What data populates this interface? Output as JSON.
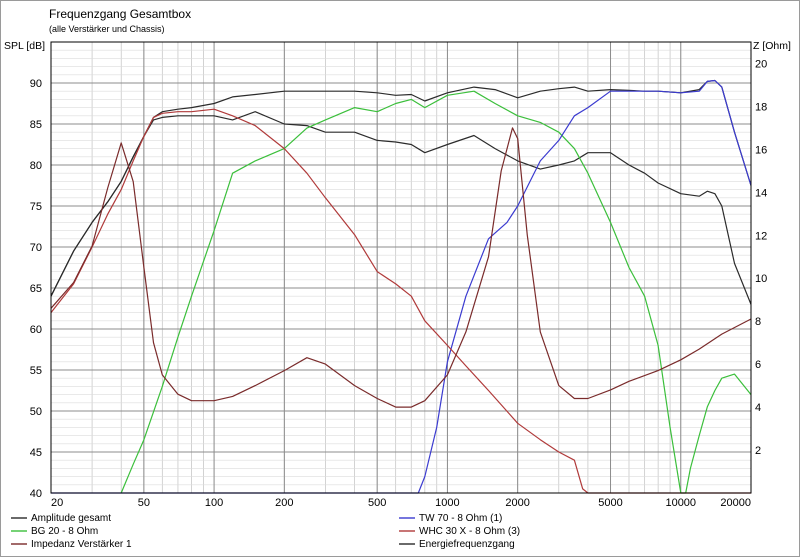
{
  "chart_data": {
    "type": "line",
    "title": "Frequenzgang Gesamtbox",
    "subtitle": "(alle Verstärker und Chassis)",
    "ylabel": "SPL [dB]",
    "y2label": "Z [Ohm]",
    "x_scale": "log",
    "xlim": [
      20,
      20000
    ],
    "ylim": [
      40,
      95
    ],
    "y2lim": [
      0,
      21
    ],
    "grid": true,
    "legend_position": "bottom",
    "x_ticks": [
      20,
      50,
      100,
      200,
      500,
      1000,
      2000,
      5000,
      10000,
      20000
    ],
    "y_ticks": [
      40,
      45,
      50,
      55,
      60,
      65,
      70,
      75,
      80,
      85,
      90
    ],
    "y2_ticks": [
      2,
      4,
      6,
      8,
      10,
      12,
      14,
      16,
      18,
      20
    ],
    "series": [
      {
        "name": "Amplitude gesamt",
        "axis": "left",
        "color": "#2b2b2b",
        "x": [
          20,
          25,
          30,
          35,
          40,
          45,
          50,
          55,
          60,
          70,
          80,
          100,
          120,
          150,
          200,
          250,
          300,
          400,
          500,
          600,
          700,
          800,
          1000,
          1300,
          1600,
          2000,
          2500,
          3000,
          3500,
          4000,
          5000,
          6000,
          7000,
          8000,
          10000,
          12000,
          13000,
          14000,
          15000,
          17000,
          20000
        ],
        "y": [
          64,
          69.5,
          73,
          75.5,
          78,
          81,
          83.5,
          85.5,
          85.8,
          86,
          86,
          86,
          85.5,
          86.5,
          85,
          84.8,
          84,
          84,
          83,
          82.8,
          82.5,
          81.5,
          82.5,
          83.6,
          82,
          80.5,
          79.5,
          80,
          80.5,
          81.5,
          81.5,
          80,
          79,
          77.8,
          76.5,
          76.2,
          76.8,
          76.5,
          75,
          68,
          63
        ]
      },
      {
        "name": "Energiefrequenzgang",
        "axis": "left",
        "color": "#2b2b2b",
        "x": [
          20,
          25,
          30,
          35,
          40,
          45,
          50,
          55,
          60,
          70,
          80,
          100,
          120,
          150,
          200,
          250,
          300,
          400,
          500,
          600,
          700,
          800,
          1000,
          1300,
          1600,
          2000,
          2500,
          3000,
          3500,
          4000,
          5000,
          6000,
          7000,
          8000,
          10000,
          12000,
          13000,
          14000,
          15000,
          17000,
          20000
        ],
        "y": [
          64,
          69.5,
          73,
          75.5,
          78,
          81,
          83.5,
          85.8,
          86.5,
          86.8,
          87,
          87.5,
          88.3,
          88.6,
          89,
          89,
          89,
          89,
          88.8,
          88.5,
          88.6,
          87.8,
          88.8,
          89.5,
          89.2,
          88.2,
          89,
          89.3,
          89.5,
          89,
          89.2,
          89.1,
          89,
          89,
          88.8,
          89.2,
          90.2,
          90.3,
          89.5,
          84,
          77.5
        ]
      },
      {
        "name": "BG 20 - 8 Ohm",
        "axis": "left",
        "color": "#3bbf3b",
        "x": [
          40,
          45,
          50,
          60,
          70,
          80,
          100,
          120,
          150,
          200,
          250,
          300,
          400,
          500,
          600,
          700,
          800,
          1000,
          1300,
          1600,
          2000,
          2500,
          3000,
          3500,
          4000,
          5000,
          6000,
          7000,
          8000,
          9000,
          10000,
          10500,
          11000,
          12000,
          13000,
          14000,
          15000,
          17000,
          20000
        ],
        "y": [
          40,
          43.5,
          46.5,
          53,
          59,
          64,
          72,
          79,
          80.5,
          82,
          84.5,
          85.5,
          87,
          86.5,
          87.5,
          88,
          87,
          88.5,
          89,
          87.5,
          86,
          85.2,
          84,
          82,
          79,
          73,
          67.5,
          64,
          58,
          48,
          40,
          40,
          43,
          47,
          50.5,
          52.5,
          54,
          54.5,
          52
        ]
      },
      {
        "name": "TW 70 - 8 Ohm (1)",
        "axis": "left",
        "color": "#3b3bd0",
        "x": [
          20,
          750,
          800,
          900,
          1000,
          1200,
          1500,
          1800,
          2000,
          2500,
          3000,
          3500,
          4000,
          5000,
          6000,
          7000,
          8000,
          10000,
          12000,
          13000,
          14000,
          15000,
          17000,
          20000
        ],
        "y": [
          40,
          40,
          42,
          48,
          56,
          64,
          71,
          73,
          75,
          80.5,
          83,
          86,
          87,
          89,
          89,
          89,
          89,
          88.8,
          89,
          90.2,
          90.3,
          89.5,
          84,
          77.5
        ]
      },
      {
        "name": "WHC 30 X - 8 Ohm (3)",
        "axis": "left",
        "color": "#b03a3a",
        "x": [
          20,
          25,
          30,
          35,
          40,
          45,
          50,
          55,
          60,
          70,
          80,
          100,
          120,
          150,
          200,
          250,
          300,
          400,
          500,
          600,
          700,
          800,
          1000,
          1200,
          1500,
          2000,
          2500,
          3000,
          3500,
          3800,
          4000,
          5000,
          10000,
          20000
        ],
        "y": [
          62,
          65.5,
          70,
          74,
          77,
          80.5,
          83.5,
          85.8,
          86.3,
          86.5,
          86.5,
          86.8,
          86,
          84.8,
          82,
          79,
          76,
          71.5,
          67,
          65.5,
          64,
          61,
          58,
          55.5,
          52.5,
          48.5,
          46.5,
          45,
          44,
          40.5,
          40,
          40,
          40,
          40
        ]
      },
      {
        "name": "Impedanz Verstärker 1",
        "axis": "right",
        "color": "#7a2b2b",
        "x": [
          20,
          25,
          30,
          35,
          40,
          45,
          50,
          55,
          60,
          70,
          80,
          100,
          120,
          150,
          200,
          250,
          300,
          400,
          500,
          600,
          700,
          800,
          1000,
          1200,
          1500,
          1700,
          1900,
          2000,
          2200,
          2500,
          3000,
          3500,
          4000,
          5000,
          6000,
          8000,
          10000,
          12000,
          15000,
          20000
        ],
        "y": [
          8.6,
          9.8,
          11.5,
          14.2,
          16.3,
          14.5,
          10.5,
          7.0,
          5.5,
          4.6,
          4.3,
          4.3,
          4.5,
          5.0,
          5.7,
          6.3,
          6.0,
          5.0,
          4.4,
          4.0,
          4.0,
          4.3,
          5.5,
          7.5,
          11.0,
          15.0,
          17.0,
          16.5,
          12.0,
          7.5,
          5.0,
          4.4,
          4.4,
          4.8,
          5.2,
          5.7,
          6.2,
          6.7,
          7.4,
          8.1
        ]
      }
    ]
  }
}
